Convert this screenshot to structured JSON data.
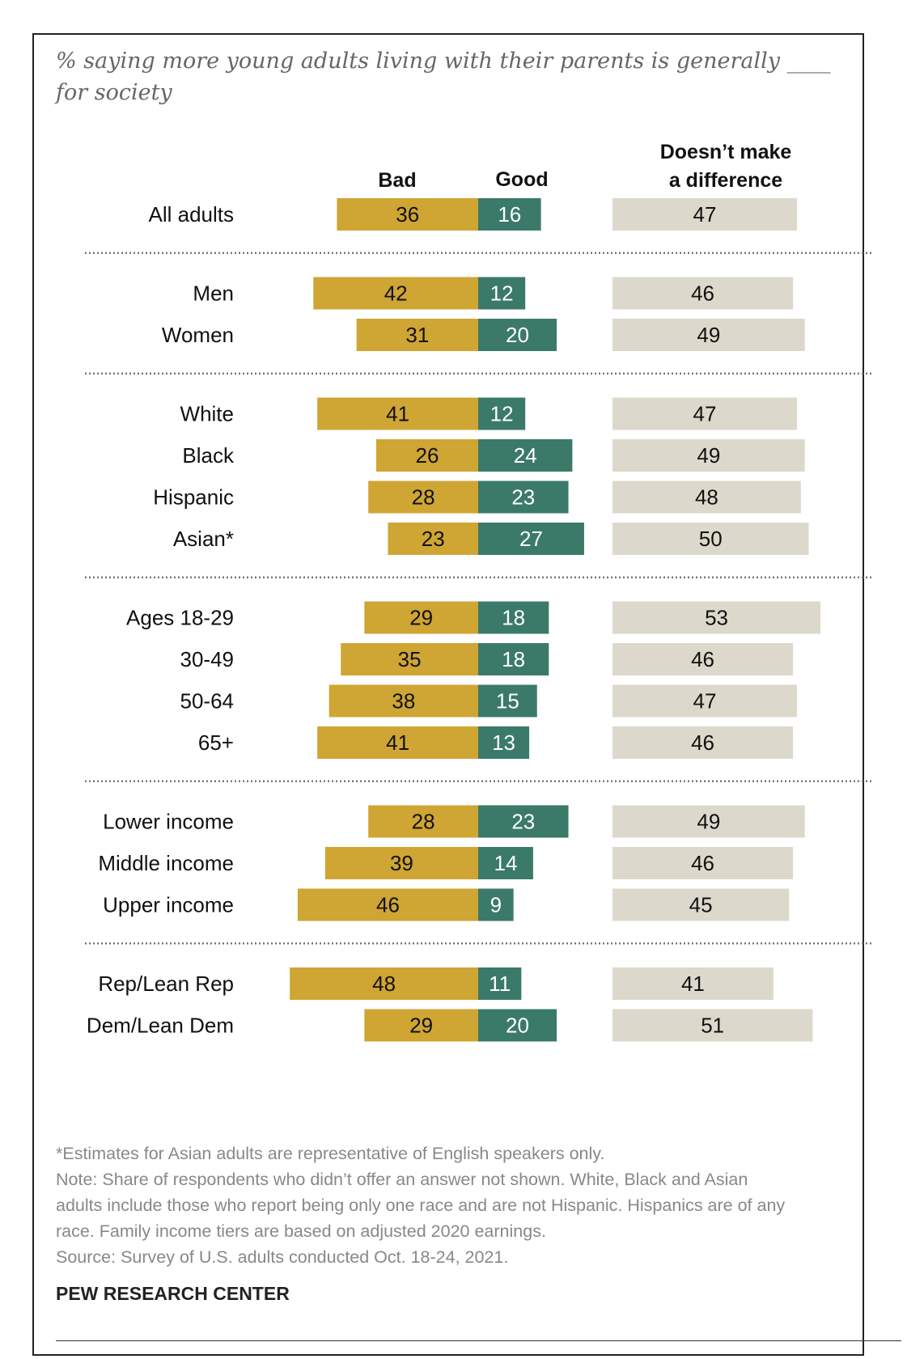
{
  "subtitle": "% saying more young adults living with their parents is generally ____ for society",
  "chart_data": {
    "type": "bar",
    "stacked_diverging": true,
    "series": [
      {
        "name": "Bad",
        "color": "#CFA533"
      },
      {
        "name": "Good",
        "color": "#3B7A68"
      },
      {
        "name": "Doesn’t make a difference",
        "color": "#DCD8CB"
      }
    ],
    "header": {
      "bad": "Bad",
      "good": "Good",
      "neutral_line1": "Doesn’t make",
      "neutral_line2": "a difference"
    },
    "groups": [
      {
        "rows": [
          {
            "label": "All adults",
            "bad": 36,
            "good": 16,
            "neutral": 47
          }
        ]
      },
      {
        "rows": [
          {
            "label": "Men",
            "bad": 42,
            "good": 12,
            "neutral": 46
          },
          {
            "label": "Women",
            "bad": 31,
            "good": 20,
            "neutral": 49
          }
        ]
      },
      {
        "rows": [
          {
            "label": "White",
            "bad": 41,
            "good": 12,
            "neutral": 47
          },
          {
            "label": "Black",
            "bad": 26,
            "good": 24,
            "neutral": 49
          },
          {
            "label": "Hispanic",
            "bad": 28,
            "good": 23,
            "neutral": 48
          },
          {
            "label": "Asian*",
            "bad": 23,
            "good": 27,
            "neutral": 50
          }
        ]
      },
      {
        "rows": [
          {
            "label": "Ages 18-29",
            "bad": 29,
            "good": 18,
            "neutral": 53
          },
          {
            "label": "30-49",
            "bad": 35,
            "good": 18,
            "neutral": 46
          },
          {
            "label": "50-64",
            "bad": 38,
            "good": 15,
            "neutral": 47
          },
          {
            "label": "65+",
            "bad": 41,
            "good": 13,
            "neutral": 46
          }
        ]
      },
      {
        "rows": [
          {
            "label": "Lower income",
            "bad": 28,
            "good": 23,
            "neutral": 49
          },
          {
            "label": "Middle income",
            "bad": 39,
            "good": 14,
            "neutral": 46
          },
          {
            "label": "Upper income",
            "bad": 46,
            "good": 9,
            "neutral": 45
          }
        ]
      },
      {
        "rows": [
          {
            "label": "Rep/Lean Rep",
            "bad": 48,
            "good": 11,
            "neutral": 41
          },
          {
            "label": "Dem/Lean Dem",
            "bad": 29,
            "good": 20,
            "neutral": 51
          }
        ]
      }
    ],
    "units": "%"
  },
  "notes": {
    "asterisk": "*Estimates for Asian adults are representative of English speakers only.",
    "note_line1": "Note: Share of respondents who didn’t offer an answer not shown. White, Black and Asian",
    "note_line2": "adults include those who report being only one race and are not Hispanic. Hispanics are of any",
    "note_line3": "race. Family income tiers are based on adjusted 2020 earnings.",
    "source": "Source: Survey of U.S. adults conducted Oct. 18-24, 2021."
  },
  "organization": "PEW RESEARCH CENTER"
}
